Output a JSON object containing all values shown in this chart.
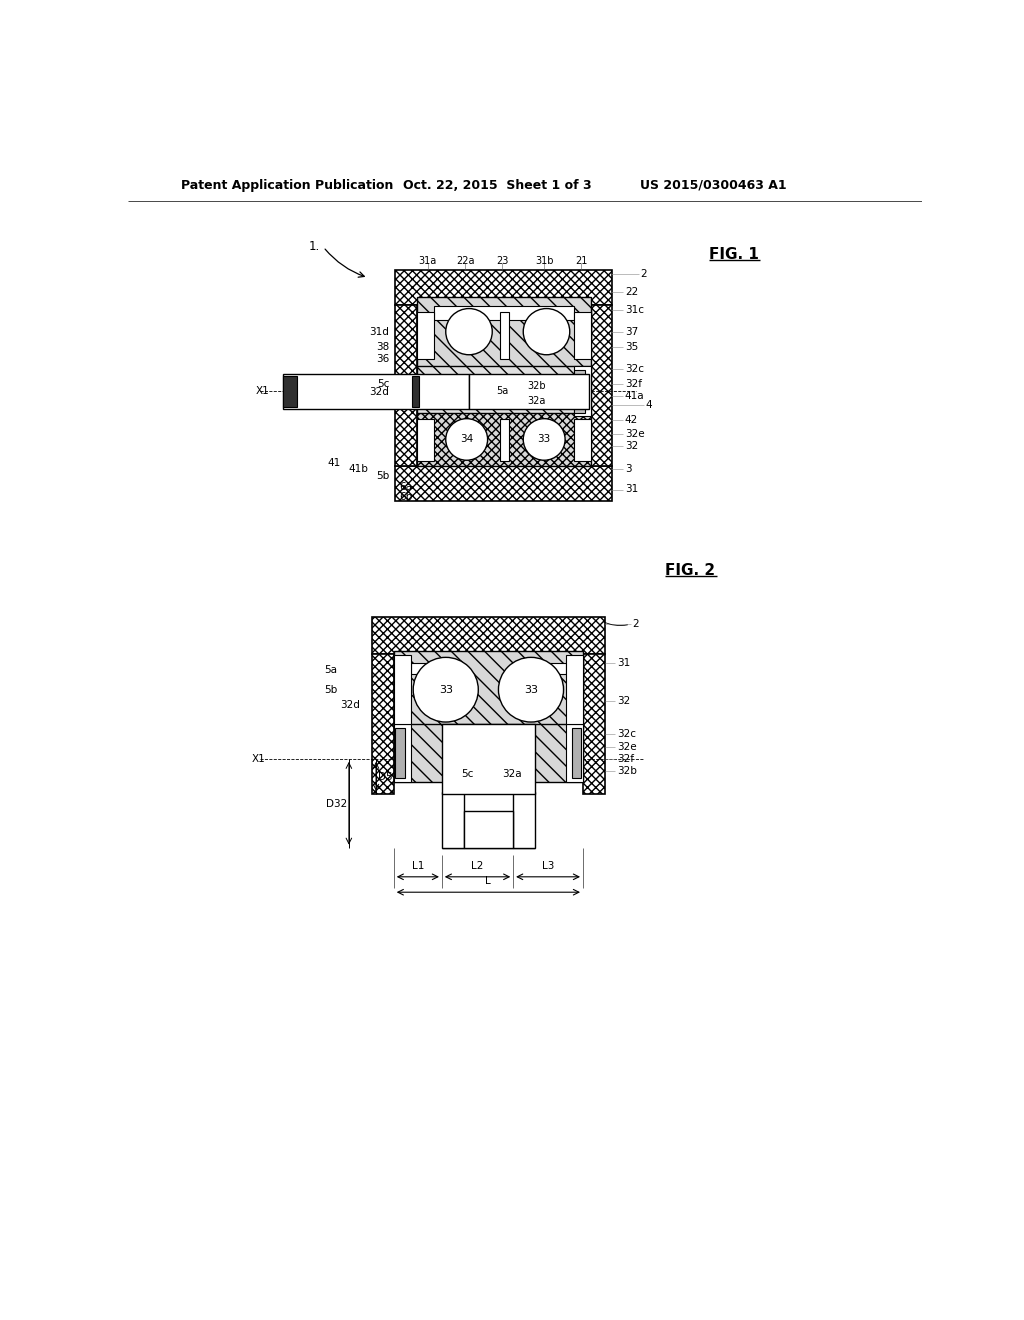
{
  "background_color": "#ffffff",
  "header_text": "Patent Application Publication",
  "header_date": "Oct. 22, 2015  Sheet 1 of 3",
  "header_patent": "US 2015/0300463 A1",
  "fig1_label": "FIG. 1",
  "fig2_label": "FIG. 2"
}
